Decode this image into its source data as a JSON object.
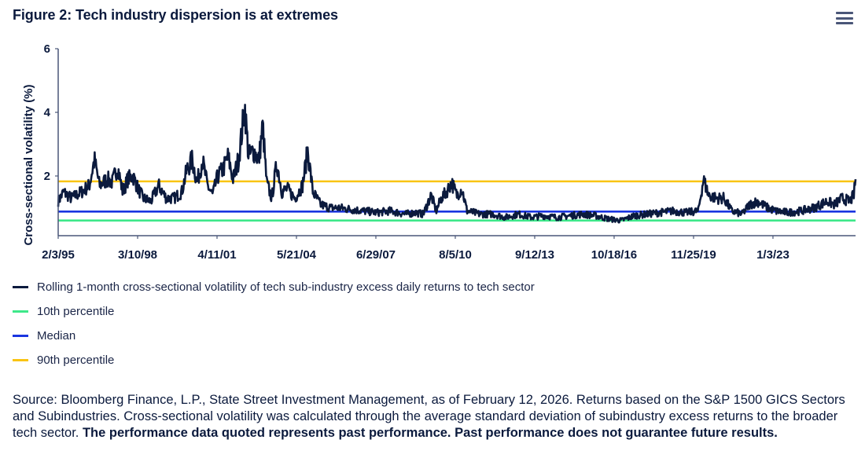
{
  "header": {
    "title": "Figure 2: Tech industry dispersion is at extremes",
    "menu_icon": "hamburger-menu-icon"
  },
  "chart_data": {
    "type": "line",
    "title": "Figure 2: Tech industry dispersion is at extremes",
    "xlabel": "",
    "ylabel": "Cross-sectional volatility (%)",
    "ylim": [
      0.12,
      6
    ],
    "yticks": [
      2,
      4,
      6
    ],
    "ytick_labels": [
      "2",
      "4",
      "6"
    ],
    "xtick_labels": [
      "2/3/95",
      "3/10/98",
      "4/11/01",
      "5/21/04",
      "6/29/07",
      "8/5/10",
      "9/12/13",
      "10/18/16",
      "11/25/19",
      "1/3/23"
    ],
    "x_range": [
      "1995-02-03",
      "2026-02-12"
    ],
    "grid": false,
    "legend_position": "bottom",
    "series": [
      {
        "name": "Rolling 1-month cross-sectional volatility of tech sub-industry excess daily returns to tech sector",
        "color": "#0b1a3d",
        "type": "line",
        "keyframes_year_value": [
          [
            1995.09,
            1.2
          ],
          [
            1995.3,
            1.5
          ],
          [
            1995.6,
            1.3
          ],
          [
            1996.0,
            1.5
          ],
          [
            1996.3,
            1.7
          ],
          [
            1996.5,
            2.5
          ],
          [
            1996.7,
            1.7
          ],
          [
            1997.0,
            1.9
          ],
          [
            1997.2,
            1.8
          ],
          [
            1997.4,
            2.3
          ],
          [
            1997.6,
            1.5
          ],
          [
            1997.8,
            1.9
          ],
          [
            1998.0,
            2.0
          ],
          [
            1998.2,
            1.6
          ],
          [
            1998.4,
            1.3
          ],
          [
            1998.7,
            1.2
          ],
          [
            1999.0,
            1.7
          ],
          [
            1999.3,
            1.3
          ],
          [
            1999.6,
            1.3
          ],
          [
            1999.9,
            1.5
          ],
          [
            2000.1,
            2.2
          ],
          [
            2000.3,
            2.5
          ],
          [
            2000.5,
            1.8
          ],
          [
            2000.7,
            2.5
          ],
          [
            2000.9,
            1.7
          ],
          [
            2001.1,
            1.4
          ],
          [
            2001.3,
            2.0
          ],
          [
            2001.5,
            2.2
          ],
          [
            2001.7,
            2.6
          ],
          [
            2001.9,
            1.9
          ],
          [
            2002.1,
            2.5
          ],
          [
            2002.2,
            3.1
          ],
          [
            2002.35,
            4.2
          ],
          [
            2002.5,
            2.6
          ],
          [
            2002.7,
            2.8
          ],
          [
            2002.9,
            2.5
          ],
          [
            2003.05,
            3.6
          ],
          [
            2003.2,
            1.8
          ],
          [
            2003.4,
            1.3
          ],
          [
            2003.6,
            2.4
          ],
          [
            2003.8,
            1.5
          ],
          [
            2004.0,
            1.6
          ],
          [
            2004.3,
            1.3
          ],
          [
            2004.6,
            1.7
          ],
          [
            2004.8,
            2.8
          ],
          [
            2005.0,
            1.5
          ],
          [
            2005.3,
            1.1
          ],
          [
            2005.7,
            1.0
          ],
          [
            2006.0,
            1.0
          ],
          [
            2006.5,
            0.95
          ],
          [
            2007.0,
            0.9
          ],
          [
            2007.5,
            0.85
          ],
          [
            2008.0,
            0.9
          ],
          [
            2008.3,
            0.85
          ],
          [
            2008.6,
            0.8
          ],
          [
            2009.0,
            0.85
          ],
          [
            2009.3,
            0.8
          ],
          [
            2009.6,
            1.4
          ],
          [
            2009.8,
            0.9
          ],
          [
            2010.0,
            1.3
          ],
          [
            2010.2,
            1.5
          ],
          [
            2010.4,
            1.8
          ],
          [
            2010.6,
            1.4
          ],
          [
            2010.8,
            1.6
          ],
          [
            2011.0,
            0.9
          ],
          [
            2011.5,
            0.8
          ],
          [
            2012.0,
            0.8
          ],
          [
            2012.5,
            0.7
          ],
          [
            2013.0,
            0.8
          ],
          [
            2013.5,
            0.7
          ],
          [
            2014.0,
            0.75
          ],
          [
            2014.5,
            0.7
          ],
          [
            2015.0,
            0.75
          ],
          [
            2015.5,
            0.8
          ],
          [
            2016.0,
            0.75
          ],
          [
            2016.5,
            0.65
          ],
          [
            2017.0,
            0.6
          ],
          [
            2017.5,
            0.75
          ],
          [
            2018.0,
            0.8
          ],
          [
            2018.5,
            0.85
          ],
          [
            2019.0,
            0.9
          ],
          [
            2019.5,
            0.85
          ],
          [
            2020.0,
            0.9
          ],
          [
            2020.2,
            1.9
          ],
          [
            2020.4,
            1.4
          ],
          [
            2020.7,
            1.3
          ],
          [
            2021.0,
            1.3
          ],
          [
            2021.3,
            0.9
          ],
          [
            2021.7,
            0.8
          ],
          [
            2022.0,
            1.1
          ],
          [
            2022.3,
            1.2
          ],
          [
            2022.7,
            1.0
          ],
          [
            2023.0,
            0.9
          ],
          [
            2023.5,
            0.85
          ],
          [
            2024.0,
            0.9
          ],
          [
            2024.5,
            1.0
          ],
          [
            2025.0,
            1.2
          ],
          [
            2025.3,
            1.1
          ],
          [
            2025.6,
            1.3
          ],
          [
            2025.9,
            1.2
          ],
          [
            2026.05,
            1.4
          ],
          [
            2026.12,
            1.9
          ]
        ]
      },
      {
        "name": "10th percentile",
        "color": "#3ee88a",
        "type": "hline",
        "value": 0.6
      },
      {
        "name": "Median",
        "color": "#1a35e0",
        "type": "hline",
        "value": 0.88
      },
      {
        "name": "90th percentile",
        "color": "#f9c413",
        "type": "hline",
        "value": 1.83
      }
    ]
  },
  "legend": {
    "items": [
      {
        "label": "Rolling 1-month cross-sectional volatility of tech sub-industry excess daily returns to tech sector",
        "color": "#0b1a3d"
      },
      {
        "label": "10th percentile",
        "color": "#3ee88a"
      },
      {
        "label": "Median",
        "color": "#1a35e0"
      },
      {
        "label": "90th percentile",
        "color": "#f9c413"
      }
    ]
  },
  "source": {
    "normal": "Source: Bloomberg Finance, L.P., State Street Investment Management, as of February 12, 2026. Returns based on the S&P 1500 GICS Sectors and Subindustries. Cross-sectional volatility was calculated through the average standard deviation of subindustry excess returns to the broader tech sector. ",
    "bold": "The performance data quoted represents past performance. Past performance does not guarantee future results."
  }
}
